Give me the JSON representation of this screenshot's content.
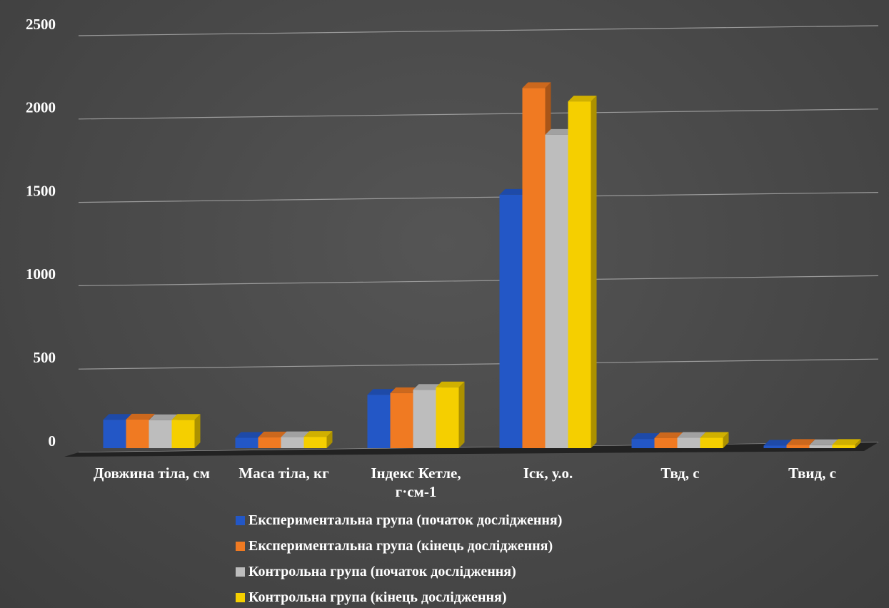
{
  "chart_data": {
    "type": "bar3d",
    "categories": [
      "Довжина тіла, см",
      "Маса тіла, кг",
      "Індекс Кетле, г·см-1",
      "Іск, у.о.",
      "Твд, с",
      "Твид, с"
    ],
    "series": [
      {
        "name": "Експериментальна група (початок дослідження)",
        "color": "#2357c6",
        "values": [
          170,
          62,
          320,
          1520,
          55,
          15
        ]
      },
      {
        "name": "Експериментальна група (кінець дослідження)",
        "color": "#f07a22",
        "values": [
          172,
          65,
          330,
          2160,
          60,
          20
        ]
      },
      {
        "name": "Контрольна група (початок дослідження)",
        "color": "#bdbdbd",
        "values": [
          168,
          66,
          350,
          1880,
          62,
          18
        ]
      },
      {
        "name": "Контрольна група (кінець дослідження)",
        "color": "#f5cf00",
        "values": [
          170,
          68,
          365,
          2080,
          62,
          20
        ]
      }
    ],
    "ylim": [
      0,
      2500
    ],
    "yticks": [
      0,
      500,
      1000,
      1500,
      2000,
      2500
    ],
    "grid": true,
    "legend": "bottom"
  }
}
